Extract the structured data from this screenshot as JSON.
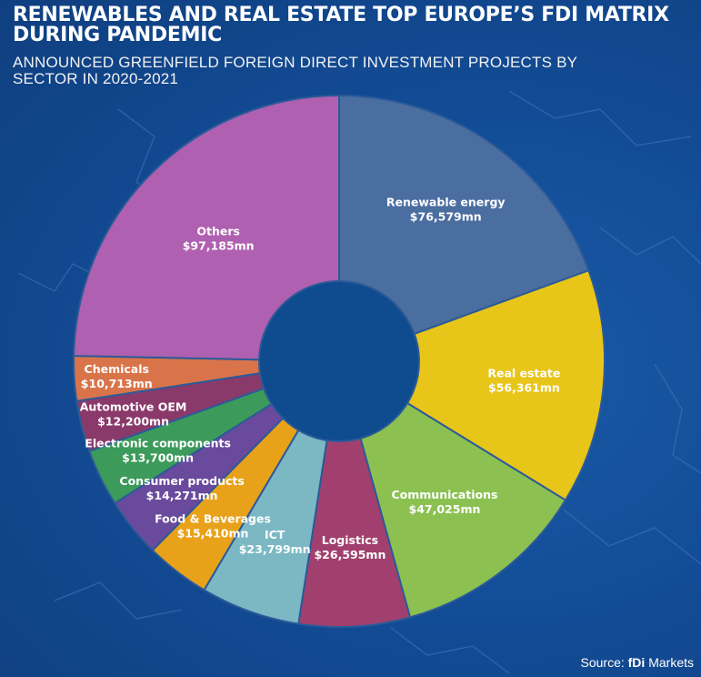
{
  "title": "RENEWABLES AND REAL ESTATE TOP EUROPE’S FDI MATRIX DURING PANDEMIC",
  "subtitle": "ANNOUNCED GREENFIELD FOREIGN DIRECT INVESTMENT PROJECTS BY SECTOR IN 2020-2021",
  "source": {
    "prefix": "Source: ",
    "brand": "fDi",
    "suffix": " Markets"
  },
  "colors": {
    "background": "#134d97",
    "slice_border": "#2c5a98",
    "hole": "#0f4c8f"
  },
  "chart_data": {
    "type": "pie",
    "variant": "donut",
    "unit": "$mn",
    "slices": [
      {
        "label": "Renewable energy",
        "value": 76579,
        "value_label": "$76,579mn",
        "color": "#4b6ea0"
      },
      {
        "label": "Real estate",
        "value": 56361,
        "value_label": "$56,361mn",
        "color": "#e8c519"
      },
      {
        "label": "Communications",
        "value": 47025,
        "value_label": "$47,025mn",
        "color": "#8cc152"
      },
      {
        "label": "Logistics",
        "value": 26595,
        "value_label": "$26,595mn",
        "color": "#a1406e"
      },
      {
        "label": "ICT",
        "value": 23799,
        "value_label": "$23,799mn",
        "color": "#7bb8c4"
      },
      {
        "label": "Food & Beverages",
        "value": 15410,
        "value_label": "$15,410mn",
        "color": "#e8a21a"
      },
      {
        "label": "Consumer products",
        "value": 14271,
        "value_label": "$14,271mn",
        "color": "#6a4a9c"
      },
      {
        "label": "Electronic components",
        "value": 13700,
        "value_label": "$13,700mn",
        "color": "#3c9a5a"
      },
      {
        "label": "Automotive OEM",
        "value": 12200,
        "value_label": "$12,200mn",
        "color": "#8a3a6a"
      },
      {
        "label": "Chemicals",
        "value": 10713,
        "value_label": "$10,713mn",
        "color": "#d9744a"
      },
      {
        "label": "Others",
        "value": 97185,
        "value_label": "$97,185mn",
        "color": "#b060b0"
      }
    ]
  }
}
